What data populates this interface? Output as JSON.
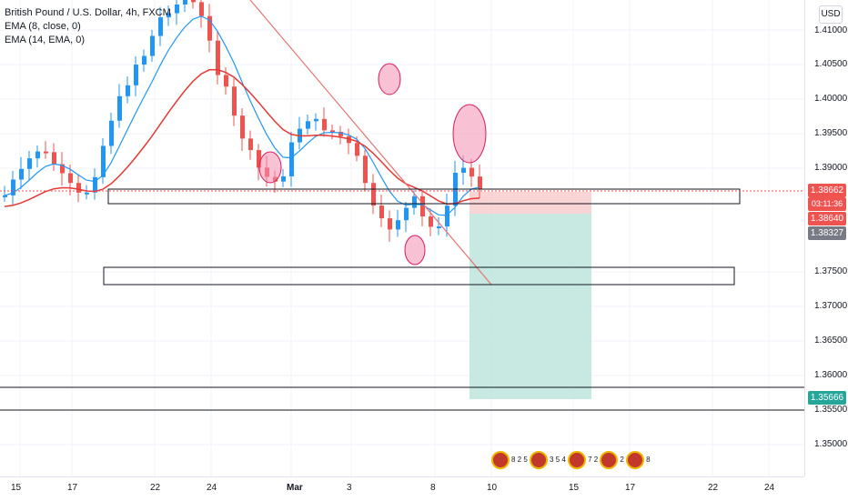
{
  "legend": {
    "title": "British Pound / U.S. Dollar, 4h, FXCM",
    "ema1": "EMA (8, close, 0)",
    "ema2": "EMA (14, EMA, 0)"
  },
  "currency": "USD",
  "price_axis": [
    "1.41000",
    "1.40500",
    "1.40000",
    "1.39500",
    "1.39000",
    "1.37500",
    "1.37000",
    "1.36500",
    "1.36000",
    "1.35500",
    "1.35000"
  ],
  "badges": {
    "last_price": "1.38662",
    "countdown": "03:11:36",
    "bid": "1.38640",
    "ema_value": "1.38327",
    "target": "1.35666"
  },
  "time_axis": [
    "15",
    "17",
    "22",
    "24",
    "Mar",
    "3",
    "8",
    "10",
    "15",
    "17",
    "22",
    "24"
  ],
  "flags": [
    "8 2 5",
    "3 5 4",
    "7 2",
    "2",
    "8"
  ],
  "colors": {
    "up": "#2196f3",
    "down": "#ef5350",
    "ema_fast": "#2196f3",
    "ema_slow": "#e53935",
    "stop_zone": "#f8c9c9",
    "target_zone": "#b9e3db",
    "annotation": "#f48fb1"
  }
}
